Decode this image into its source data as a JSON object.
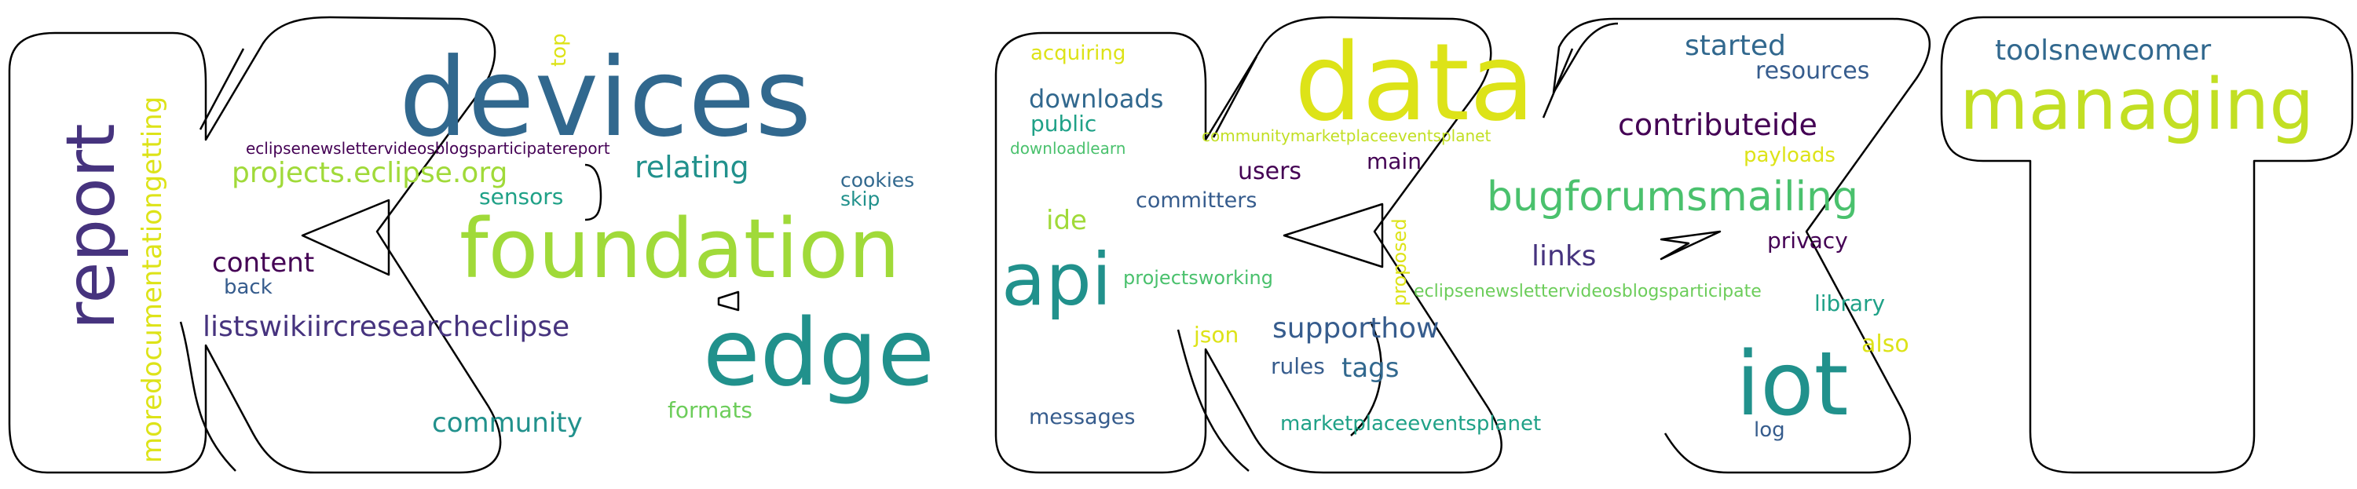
{
  "colors": {
    "outline": "#000000",
    "background": "#ffffff",
    "dark_purple": "#440154",
    "indigo": "#46337e",
    "slate_blue": "#365c8d",
    "steel_blue": "#31688e",
    "teal": "#21918c",
    "sea_green": "#1fa187",
    "green": "#4ac16d",
    "light_green": "#6ccd5a",
    "yellow_green": "#a0da39",
    "lime": "#c2df23",
    "yellow": "#dde318"
  },
  "words": [
    {
      "id": "devices",
      "text": "devices",
      "color": "#31688e"
    },
    {
      "id": "foundation",
      "text": "foundation",
      "color": "#a0da39"
    },
    {
      "id": "edge",
      "text": "edge",
      "color": "#21918c"
    },
    {
      "id": "report",
      "text": "report",
      "color": "#46337e"
    },
    {
      "id": "moredocumentationgetting",
      "text": "moredocumentationgetting",
      "color": "#dde318"
    },
    {
      "id": "eclipsenewsletter-report",
      "text": "eclipsenewslettervideosblogsparticipatereport",
      "color": "#440154"
    },
    {
      "id": "projects-eclipse-org",
      "text": "projects.eclipse.org",
      "color": "#a0da39"
    },
    {
      "id": "relating",
      "text": "relating",
      "color": "#21918c"
    },
    {
      "id": "sensors",
      "text": "sensors",
      "color": "#1fa187"
    },
    {
      "id": "top",
      "text": "top",
      "color": "#dde318"
    },
    {
      "id": "cookies",
      "text": "cookies",
      "color": "#31688e"
    },
    {
      "id": "skip",
      "text": "skip",
      "color": "#21918c"
    },
    {
      "id": "content",
      "text": "content",
      "color": "#440154"
    },
    {
      "id": "back",
      "text": "back",
      "color": "#365c8d"
    },
    {
      "id": "listswiki",
      "text": "listswikiircresearcheclipse",
      "color": "#46337e"
    },
    {
      "id": "community",
      "text": "community",
      "color": "#21918c"
    },
    {
      "id": "formats",
      "text": "formats",
      "color": "#6ccd5a"
    },
    {
      "id": "acquiring",
      "text": "acquiring",
      "color": "#dde318"
    },
    {
      "id": "downloads",
      "text": "downloads",
      "color": "#31688e"
    },
    {
      "id": "public",
      "text": "public",
      "color": "#1fa187"
    },
    {
      "id": "downloadlearn",
      "text": "downloadlearn",
      "color": "#4ac16d"
    },
    {
      "id": "data",
      "text": "data",
      "color": "#dde318"
    },
    {
      "id": "communitymarketplace",
      "text": "communitymarketplaceeventsplanet",
      "color": "#c2df23"
    },
    {
      "id": "users",
      "text": "users",
      "color": "#440154"
    },
    {
      "id": "main",
      "text": "main",
      "color": "#440154"
    },
    {
      "id": "committers",
      "text": "committers",
      "color": "#365c8d"
    },
    {
      "id": "ide",
      "text": "ide",
      "color": "#a0da39"
    },
    {
      "id": "api",
      "text": "api",
      "color": "#21918c"
    },
    {
      "id": "projectsworking",
      "text": "projectsworking",
      "color": "#4ac16d"
    },
    {
      "id": "proposed",
      "text": "proposed",
      "color": "#dde318"
    },
    {
      "id": "json",
      "text": "json",
      "color": "#dde318"
    },
    {
      "id": "supporthow",
      "text": "supporthow",
      "color": "#365c8d"
    },
    {
      "id": "rules",
      "text": "rules",
      "color": "#365c8d"
    },
    {
      "id": "tags",
      "text": "tags",
      "color": "#31688e"
    },
    {
      "id": "messages",
      "text": "messages",
      "color": "#365c8d"
    },
    {
      "id": "marketplaceeventsplanet",
      "text": "marketplaceeventsplanet",
      "color": "#1fa187"
    },
    {
      "id": "started",
      "text": "started",
      "color": "#31688e"
    },
    {
      "id": "resources",
      "text": "resources",
      "color": "#365c8d"
    },
    {
      "id": "contributeide",
      "text": "contributeide",
      "color": "#440154"
    },
    {
      "id": "payloads",
      "text": "payloads",
      "color": "#dde318"
    },
    {
      "id": "bugforumsmailing",
      "text": "bugforumsmailing",
      "color": "#4ac16d"
    },
    {
      "id": "links",
      "text": "links",
      "color": "#46337e"
    },
    {
      "id": "privacy",
      "text": "privacy",
      "color": "#440154"
    },
    {
      "id": "eclipsenewsletter-participate",
      "text": "eclipsenewslettervideosblogsparticipate",
      "color": "#6ccd5a"
    },
    {
      "id": "library",
      "text": "library",
      "color": "#1fa187"
    },
    {
      "id": "also",
      "text": "also",
      "color": "#dde318"
    },
    {
      "id": "iot",
      "text": "iot",
      "color": "#21918c"
    },
    {
      "id": "log",
      "text": "log",
      "color": "#365c8d"
    },
    {
      "id": "toolsnewcomer",
      "text": "toolsnewcomer",
      "color": "#31688e"
    },
    {
      "id": "managing",
      "text": "managing",
      "color": "#c2df23"
    }
  ]
}
